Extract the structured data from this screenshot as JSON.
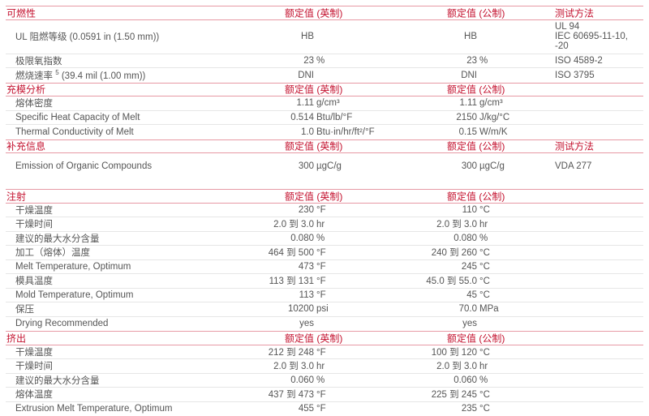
{
  "sections": [
    {
      "title": "可燃性",
      "col_english": "额定值 (英制)",
      "col_metric": "额定值 (公制)",
      "col_test": "测试方法",
      "rows": [
        {
          "label": "UL 阻燃等级 (0.0591 in (1.50 mm))",
          "en_num": "HB",
          "en_unit": "",
          "me_num": "HB",
          "me_unit": "",
          "test": [
            "UL 94",
            "IEC 60695-11-10,",
            "-20"
          ]
        },
        {
          "label": "极限氧指数",
          "en_num": "23",
          "en_unit": "%",
          "me_num": "23",
          "me_unit": "%",
          "test": [
            "ISO 4589-2"
          ]
        },
        {
          "label": "燃烧速率",
          "sup": "5",
          "label_suffix": " (39.4 mil (1.00 mm))",
          "en_num": "DNI",
          "en_unit": "",
          "me_num": "DNI",
          "me_unit": "",
          "test": [
            "ISO 3795"
          ]
        }
      ]
    },
    {
      "title": "充模分析",
      "col_english": "额定值 (英制)",
      "col_metric": "额定值 (公制)",
      "col_test": "",
      "rows": [
        {
          "label": "熔体密度",
          "en_num": "1.11",
          "en_unit": "g/cm³",
          "me_num": "1.11",
          "me_unit": "g/cm³"
        },
        {
          "label": "Specific Heat Capacity of Melt",
          "en_num": "0.514",
          "en_unit": "Btu/lb/°F",
          "me_num": "2150",
          "me_unit": "J/kg/°C"
        },
        {
          "label": "Thermal Conductivity of Melt",
          "en_num": "1.0",
          "en_unit": "Btu·in/hr/ft²/°F",
          "me_num": "0.15",
          "me_unit": "W/m/K"
        }
      ]
    },
    {
      "title": "补充信息",
      "col_english": "额定值 (英制)",
      "col_metric": "额定值 (公制)",
      "col_test": "测试方法",
      "rows": [
        {
          "label": "Emission of Organic Compounds",
          "en_num": "300",
          "en_unit": "µgC/g",
          "me_num": "300",
          "me_unit": "µgC/g",
          "test": [
            "VDA 277"
          ]
        }
      ]
    },
    {
      "title": "注射",
      "col_english": "额定值 (英制)",
      "col_metric": "额定值 (公制)",
      "col_test": "",
      "rows": [
        {
          "label": "干燥温度",
          "en_num": "230",
          "en_unit": "°F",
          "me_num": "110",
          "me_unit": "°C"
        },
        {
          "label": "干燥时间",
          "en_num": "2.0 到 3.0",
          "en_unit": "hr",
          "me_num": "2.0 到 3.0",
          "me_unit": "hr"
        },
        {
          "label": "建议的最大水分含量",
          "en_num": "0.080",
          "en_unit": "%",
          "me_num": "0.080",
          "me_unit": "%"
        },
        {
          "label": "加工（熔体）温度",
          "en_num": "464 到 500",
          "en_unit": "°F",
          "me_num": "240 到 260",
          "me_unit": "°C"
        },
        {
          "label": "Melt Temperature, Optimum",
          "en_num": "473",
          "en_unit": "°F",
          "me_num": "245",
          "me_unit": "°C"
        },
        {
          "label": "模具温度",
          "en_num": "113 到 131",
          "en_unit": "°F",
          "me_num": "45.0 到 55.0",
          "me_unit": "°C"
        },
        {
          "label": "Mold Temperature, Optimum",
          "en_num": "113",
          "en_unit": "°F",
          "me_num": "45",
          "me_unit": "°C"
        },
        {
          "label": "保压",
          "en_num": "10200",
          "en_unit": "psi",
          "me_num": "70.0",
          "me_unit": "MPa"
        },
        {
          "label": "Drying Recommended",
          "en_num": "yes",
          "en_unit": "",
          "me_num": "yes",
          "me_unit": ""
        }
      ]
    },
    {
      "title": "挤出",
      "col_english": "额定值 (英制)",
      "col_metric": "额定值 (公制)",
      "col_test": "",
      "rows": [
        {
          "label": "干燥温度",
          "en_num": "212 到 248",
          "en_unit": "°F",
          "me_num": "100 到 120",
          "me_unit": "°C"
        },
        {
          "label": "干燥时间",
          "en_num": "2.0 到 3.0",
          "en_unit": "hr",
          "me_num": "2.0 到 3.0",
          "me_unit": "hr"
        },
        {
          "label": "建议的最大水分含量",
          "en_num": "0.060",
          "en_unit": "%",
          "me_num": "0.060",
          "me_unit": "%"
        },
        {
          "label": "熔体温度",
          "en_num": "437 到 473",
          "en_unit": "°F",
          "me_num": "225 到 245",
          "me_unit": "°C"
        },
        {
          "label": "Extrusion Melt Temperature, Optimum",
          "en_num": "455",
          "en_unit": "°F",
          "me_num": "235",
          "me_unit": "°C"
        }
      ]
    }
  ]
}
